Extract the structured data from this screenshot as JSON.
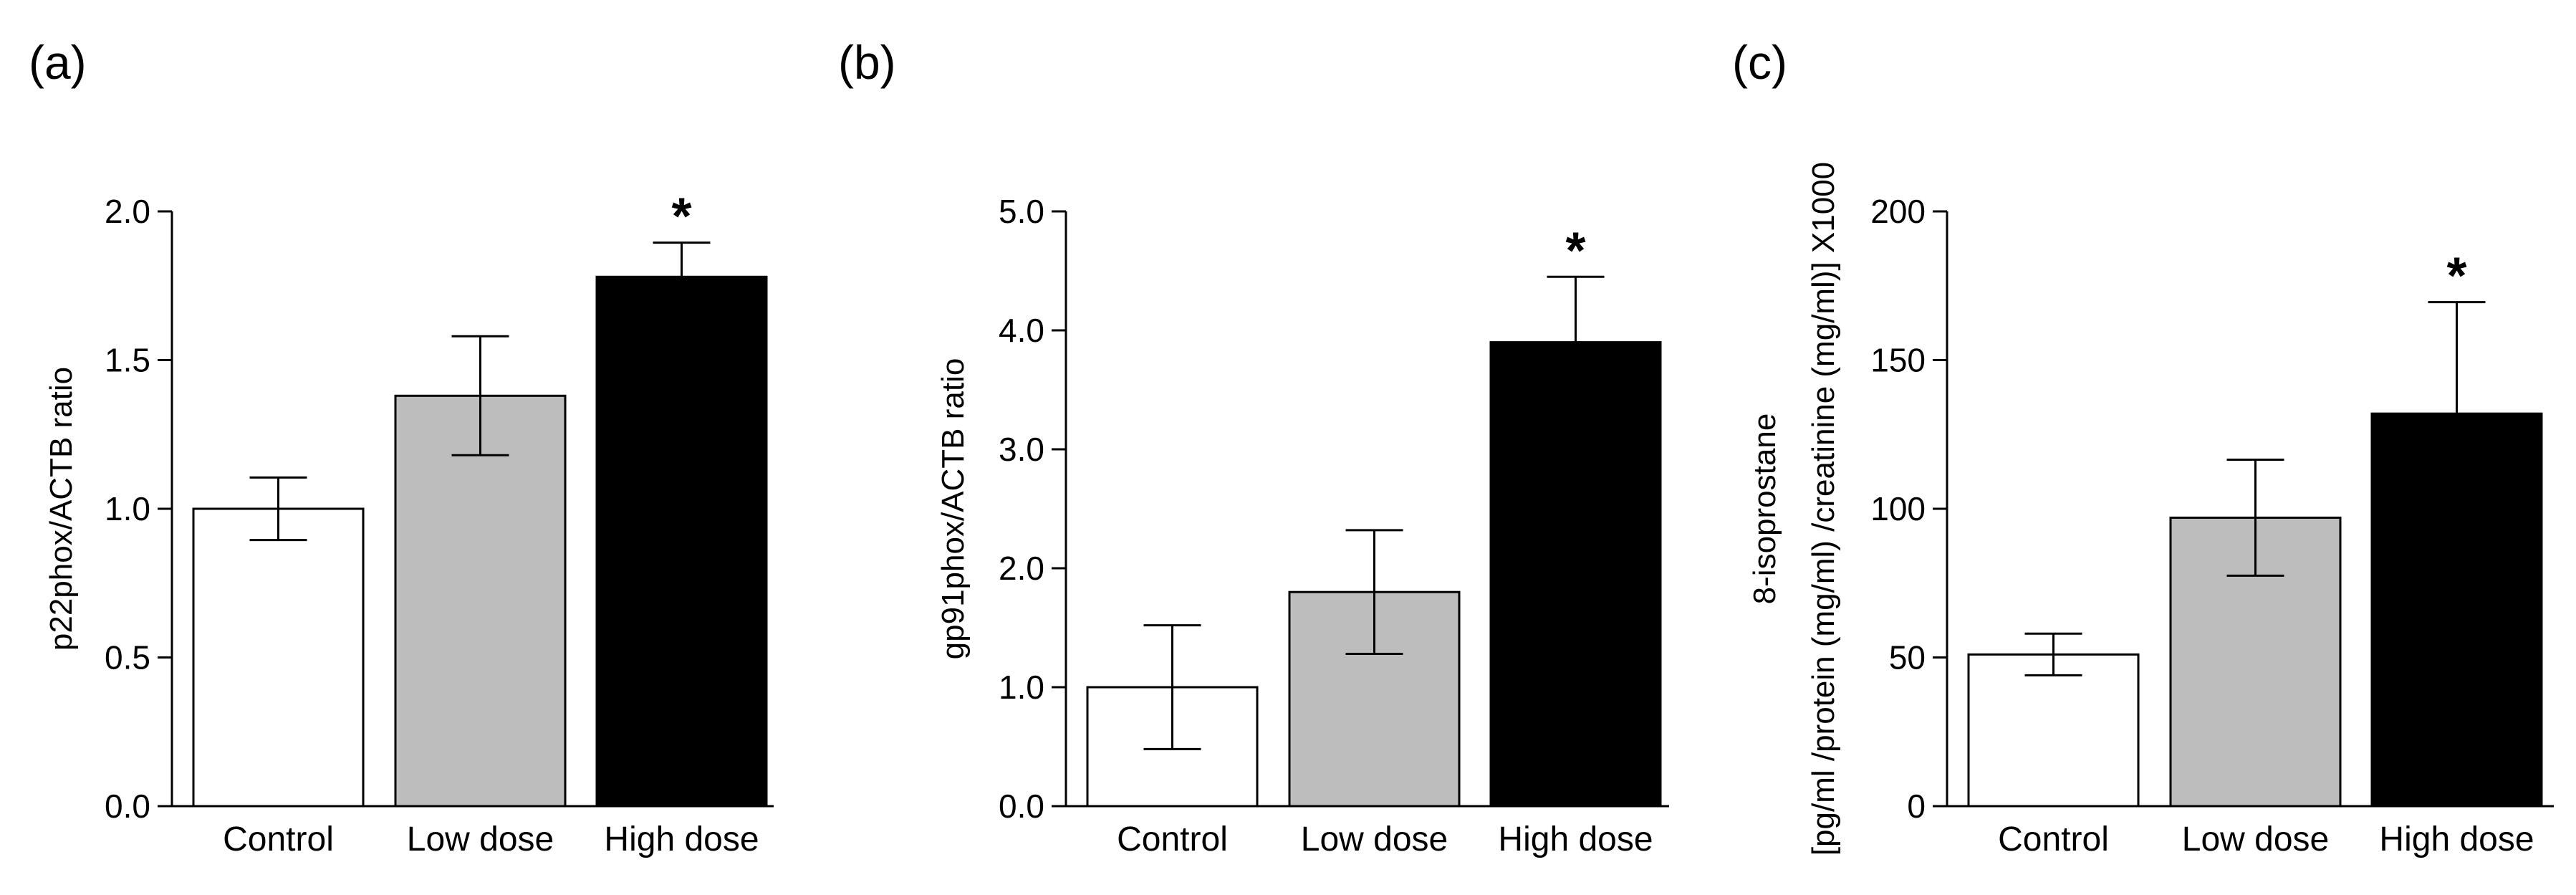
{
  "chart_data": [
    {
      "type": "bar",
      "panel_label": "(a)",
      "ylabel": "p22phox/ACTB ratio",
      "ylabel_line2": "",
      "categories": [
        "Control",
        "Low dose",
        "High dose"
      ],
      "values": [
        1.0,
        1.38,
        1.78
      ],
      "errors": [
        0.105,
        0.2,
        0.115
      ],
      "significance": [
        "",
        "",
        "*"
      ],
      "bar_colors": [
        "#ffffff",
        "#bdbdbd",
        "#000000"
      ],
      "ylim": [
        0,
        2.0
      ],
      "yticks": [
        0.0,
        0.5,
        1.0,
        1.5,
        2.0
      ],
      "ytick_labels": [
        "0.0",
        "0.5",
        "1.0",
        "1.5",
        "2.0"
      ]
    },
    {
      "type": "bar",
      "panel_label": "(b)",
      "ylabel": "gp91phox/ACTB ratio",
      "ylabel_line2": "",
      "categories": [
        "Control",
        "Low dose",
        "High dose"
      ],
      "values": [
        1.0,
        1.8,
        3.9
      ],
      "errors": [
        0.52,
        0.52,
        0.55
      ],
      "significance": [
        "",
        "",
        "*"
      ],
      "bar_colors": [
        "#ffffff",
        "#bdbdbd",
        "#000000"
      ],
      "ylim": [
        0,
        5.0
      ],
      "yticks": [
        0.0,
        1.0,
        2.0,
        3.0,
        4.0,
        5.0
      ],
      "ytick_labels": [
        "0.0",
        "1.0",
        "2.0",
        "3.0",
        "4.0",
        "5.0"
      ]
    },
    {
      "type": "bar",
      "panel_label": "(c)",
      "ylabel": "8-isoprostane",
      "ylabel_line2": "[pg/ml /protein (mg/ml) /creatinine (mg/ml)] X1000",
      "categories": [
        "Control",
        "Low dose",
        "High dose"
      ],
      "values": [
        51,
        97,
        132
      ],
      "errors": [
        7,
        19.5,
        37.5
      ],
      "significance": [
        "",
        "",
        "*"
      ],
      "bar_colors": [
        "#ffffff",
        "#bdbdbd",
        "#000000"
      ],
      "ylim": [
        0,
        200
      ],
      "yticks": [
        0,
        50,
        100,
        150,
        200
      ],
      "ytick_labels": [
        "0",
        "50",
        "100",
        "150",
        "200"
      ]
    }
  ]
}
